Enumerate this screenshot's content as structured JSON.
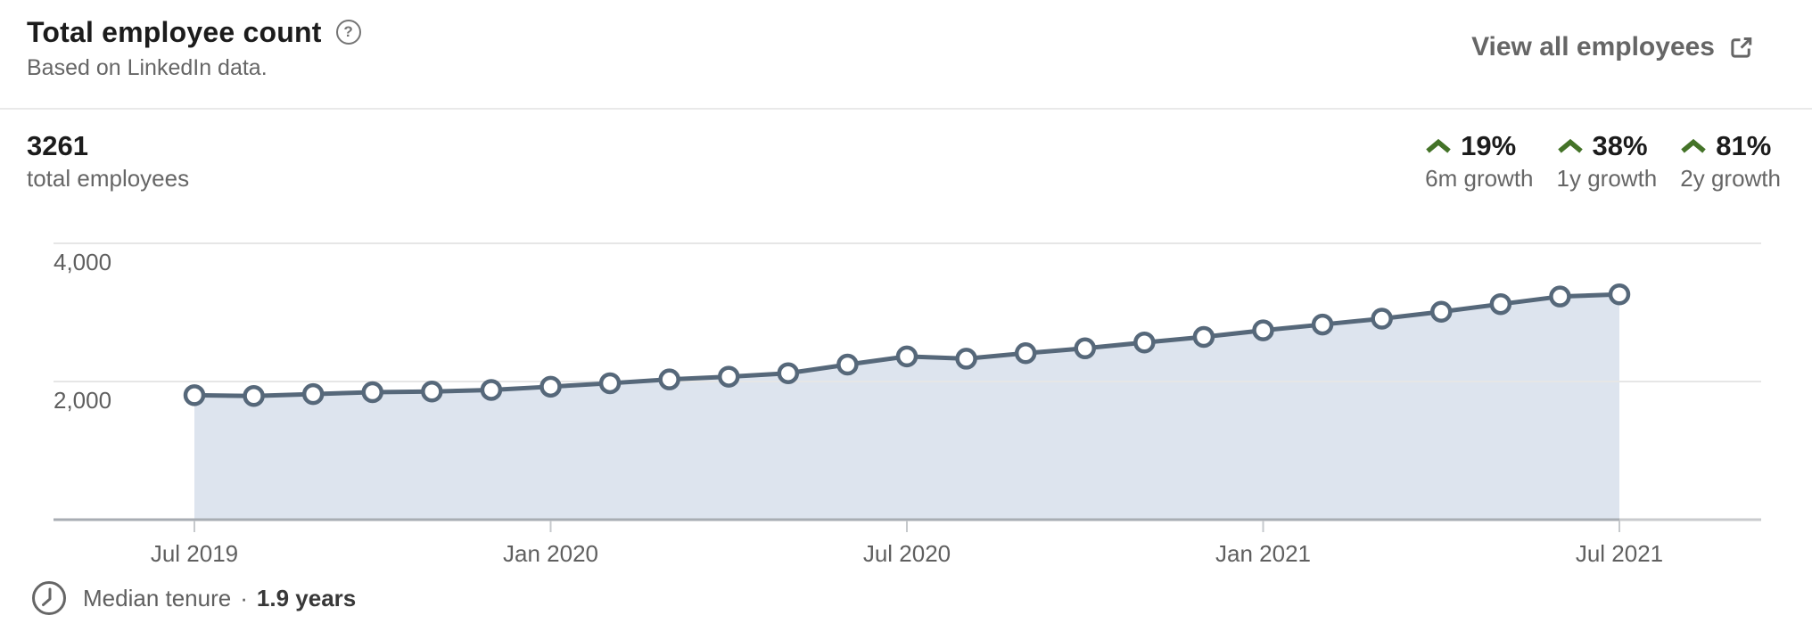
{
  "header": {
    "title": "Total employee count",
    "subtitle": "Based on LinkedIn data.",
    "help_icon": "question-mark-circle-icon",
    "help_glyph": "?",
    "view_all": {
      "label": "View all employees",
      "icon": "external-link-icon"
    }
  },
  "stats": {
    "total": {
      "value": "3261",
      "label": "total employees"
    },
    "growth": [
      {
        "value": "19%",
        "label": "6m growth",
        "direction": "up",
        "icon": "chevron-up-icon"
      },
      {
        "value": "38%",
        "label": "1y growth",
        "direction": "up",
        "icon": "chevron-up-icon"
      },
      {
        "value": "81%",
        "label": "2y growth",
        "direction": "up",
        "icon": "chevron-up-icon"
      }
    ],
    "growth_color": "#447328"
  },
  "chart_data": {
    "type": "area",
    "title": "Total employee count",
    "x": [
      "Jul 2019",
      "Aug 2019",
      "Sep 2019",
      "Oct 2019",
      "Nov 2019",
      "Dec 2019",
      "Jan 2020",
      "Feb 2020",
      "Mar 2020",
      "Apr 2020",
      "May 2020",
      "Jun 2020",
      "Jul 2020",
      "Aug 2020",
      "Sep 2020",
      "Oct 2020",
      "Nov 2020",
      "Dec 2020",
      "Jan 2021",
      "Feb 2021",
      "Mar 2021",
      "Apr 2021",
      "May 2021",
      "Jun 2021",
      "Jul 2021"
    ],
    "values": [
      1802,
      1790,
      1818,
      1845,
      1855,
      1878,
      1925,
      1975,
      2030,
      2070,
      2120,
      2245,
      2363,
      2330,
      2410,
      2480,
      2565,
      2645,
      2740,
      2825,
      2910,
      3010,
      3120,
      3230,
      3261
    ],
    "yticks": [
      {
        "value": 4000,
        "label": "4,000"
      },
      {
        "value": 2000,
        "label": "2,000"
      }
    ],
    "xticks": [
      {
        "index": 0,
        "label": "Jul 2019"
      },
      {
        "index": 6,
        "label": "Jan 2020"
      },
      {
        "index": 12,
        "label": "Jul 2020"
      },
      {
        "index": 18,
        "label": "Jan 2021"
      },
      {
        "index": 24,
        "label": "Jul 2021"
      }
    ],
    "ylim": [
      0,
      4800
    ],
    "grid": true,
    "legend": false,
    "colors": {
      "line": "#56687a",
      "marker_fill": "#ffffff",
      "area": "#dde4ee",
      "grid": "#e6e6e6",
      "axis": "#a8adb3",
      "axis_extension": "#c9cbce",
      "tick": "#c6c9cc",
      "tick_label": "#5f5f5f"
    }
  },
  "footer": {
    "icon": "clock-icon",
    "label": "Median tenure",
    "separator": "·",
    "value": "1.9 years"
  }
}
